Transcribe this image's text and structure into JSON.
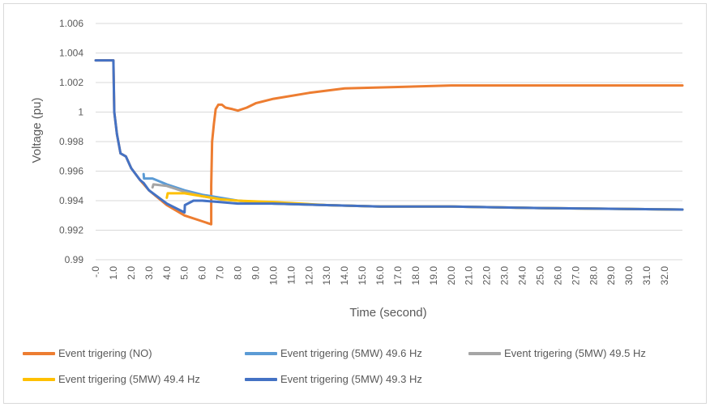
{
  "chart_data": {
    "type": "line",
    "xlabel": "Time (second)",
    "ylabel": "Voltage (pu)",
    "ylim": [
      0.99,
      1.006
    ],
    "yticks": [
      "1.006",
      "1.004",
      "1.002",
      "1",
      "0.998",
      "0.996",
      "0.994",
      "0.992",
      "0.99"
    ],
    "xticks": [
      "-.0",
      "1.0",
      "2.0",
      "3.0",
      "4.0",
      "5.0",
      "6.0",
      "7.0",
      "8.0",
      "9.0",
      "10.0",
      "11.0",
      "12.0",
      "13.0",
      "14.0",
      "15.0",
      "16.0",
      "17.0",
      "18.0",
      "19.0",
      "20.0",
      "21.0",
      "22.0",
      "23.0",
      "24.0",
      "25.0",
      "26.0",
      "27.0",
      "28.0",
      "29.0",
      "30.0",
      "31.0",
      "32.0"
    ],
    "xlim": [
      0,
      33
    ],
    "grid": true,
    "legend_position": "bottom",
    "series": [
      {
        "name": "Event trigering (NO)",
        "color": "#ED7D31",
        "points": [
          [
            0,
            1.0035
          ],
          [
            1.0,
            1.0035
          ],
          [
            1.05,
            1.0
          ],
          [
            1.2,
            0.9985
          ],
          [
            1.4,
            0.9972
          ],
          [
            1.7,
            0.997
          ],
          [
            2.0,
            0.9962
          ],
          [
            2.5,
            0.9954
          ],
          [
            3.0,
            0.9947
          ],
          [
            4.0,
            0.9937
          ],
          [
            5.0,
            0.993
          ],
          [
            6.0,
            0.9926
          ],
          [
            6.5,
            0.9924
          ],
          [
            6.5,
            0.995
          ],
          [
            6.55,
            0.998
          ],
          [
            6.65,
            0.9992
          ],
          [
            6.75,
            1.0002
          ],
          [
            6.9,
            1.0005
          ],
          [
            7.1,
            1.0005
          ],
          [
            7.3,
            1.0003
          ],
          [
            7.7,
            1.0002
          ],
          [
            8.0,
            1.0001
          ],
          [
            8.5,
            1.0003
          ],
          [
            9.0,
            1.0006
          ],
          [
            10.0,
            1.0009
          ],
          [
            12.0,
            1.0013
          ],
          [
            14.0,
            1.0016
          ],
          [
            17.0,
            1.0017
          ],
          [
            20.0,
            1.0018
          ],
          [
            25.0,
            1.0018
          ],
          [
            33.0,
            1.0018
          ]
        ]
      },
      {
        "name": "Event trigering (5MW) 49.6 Hz",
        "color": "#5B9BD5",
        "points": [
          [
            2.7,
            0.9958
          ],
          [
            2.72,
            0.9955
          ],
          [
            3.2,
            0.9955
          ],
          [
            4.0,
            0.9951
          ],
          [
            5.0,
            0.9947
          ],
          [
            6.0,
            0.9944
          ],
          [
            7.0,
            0.9942
          ],
          [
            8.0,
            0.994
          ],
          [
            10.0,
            0.9938
          ],
          [
            13.0,
            0.9937
          ],
          [
            16.0,
            0.9936
          ],
          [
            20.0,
            0.9936
          ],
          [
            25.0,
            0.9935
          ],
          [
            33.0,
            0.9934
          ]
        ]
      },
      {
        "name": "Event trigering (5MW) 49.5 Hz",
        "color": "#A5A5A5",
        "points": [
          [
            3.2,
            0.9949
          ],
          [
            3.25,
            0.9951
          ],
          [
            4.0,
            0.995
          ],
          [
            5.0,
            0.9946
          ],
          [
            6.0,
            0.9943
          ],
          [
            7.0,
            0.9941
          ],
          [
            8.0,
            0.994
          ],
          [
            10.0,
            0.9938
          ],
          [
            13.0,
            0.9937
          ],
          [
            16.0,
            0.9936
          ],
          [
            20.0,
            0.9936
          ],
          [
            25.0,
            0.9935
          ],
          [
            33.0,
            0.9934
          ]
        ]
      },
      {
        "name": "Event trigering (5MW) 49.4 Hz",
        "color": "#FFC000",
        "points": [
          [
            4.0,
            0.9942
          ],
          [
            4.05,
            0.9945
          ],
          [
            5.0,
            0.9945
          ],
          [
            6.0,
            0.9943
          ],
          [
            7.0,
            0.9941
          ],
          [
            8.0,
            0.994
          ],
          [
            10.0,
            0.9939
          ],
          [
            13.0,
            0.9937
          ],
          [
            16.0,
            0.9936
          ],
          [
            20.0,
            0.9936
          ],
          [
            25.0,
            0.9935
          ],
          [
            33.0,
            0.9934
          ]
        ]
      },
      {
        "name": "Event trigering (5MW) 49.3 Hz",
        "color": "#4472C4",
        "points": [
          [
            0,
            1.0035
          ],
          [
            1.0,
            1.0035
          ],
          [
            1.05,
            1.0
          ],
          [
            1.2,
            0.9985
          ],
          [
            1.4,
            0.9972
          ],
          [
            1.7,
            0.997
          ],
          [
            2.0,
            0.9962
          ],
          [
            2.5,
            0.9954
          ],
          [
            2.7,
            0.9952
          ],
          [
            3.0,
            0.9947
          ],
          [
            4.0,
            0.9938
          ],
          [
            4.5,
            0.9935
          ],
          [
            5.0,
            0.9932
          ],
          [
            5.02,
            0.9937
          ],
          [
            5.5,
            0.994
          ],
          [
            6.0,
            0.994
          ],
          [
            7.0,
            0.9939
          ],
          [
            8.0,
            0.9938
          ],
          [
            10.0,
            0.9938
          ],
          [
            13.0,
            0.9937
          ],
          [
            16.0,
            0.9936
          ],
          [
            20.0,
            0.9936
          ],
          [
            25.0,
            0.9935
          ],
          [
            33.0,
            0.9934
          ]
        ]
      }
    ]
  }
}
